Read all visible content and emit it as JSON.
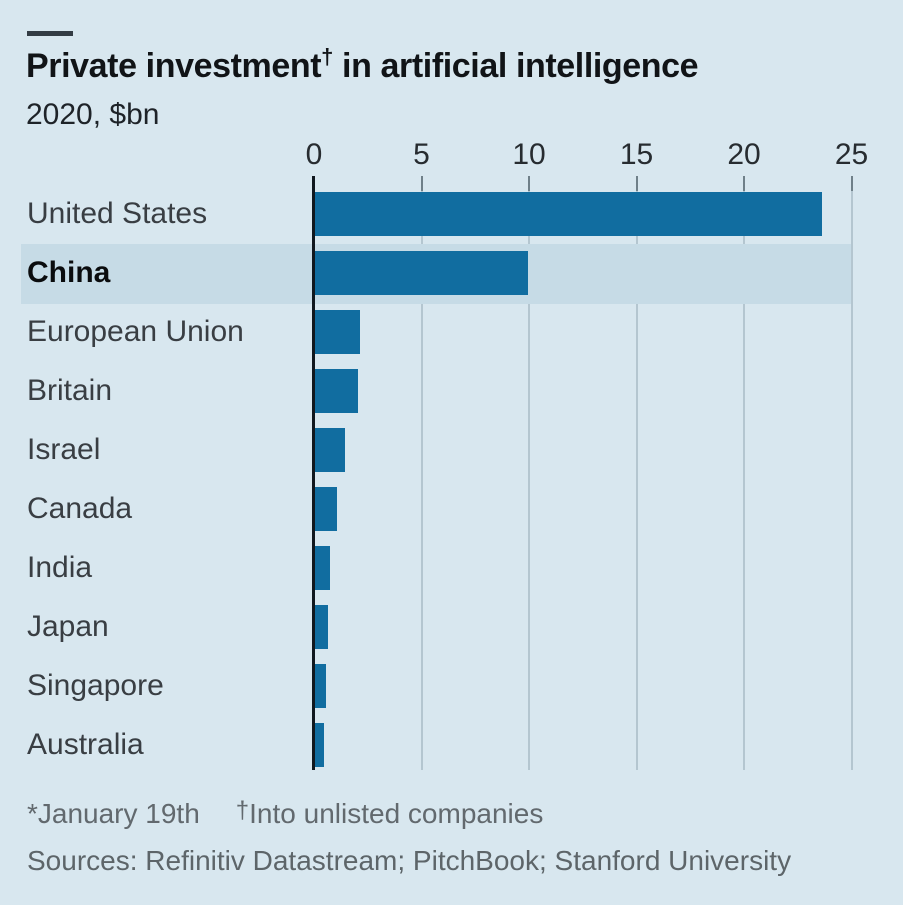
{
  "header": {
    "title_part1": "Private investment",
    "title_dagger": "†",
    "title_part2": " in artificial intelligence",
    "subtitle": "2020, $bn"
  },
  "chart_data": {
    "type": "bar",
    "orientation": "horizontal",
    "title": "Private investment† in artificial intelligence",
    "subtitle": "2020, $bn",
    "categories": [
      "United States",
      "China",
      "European Union",
      "Britain",
      "Israel",
      "Canada",
      "India",
      "Japan",
      "Singapore",
      "Australia"
    ],
    "values": [
      23.6,
      9.9,
      2.1,
      2.0,
      1.4,
      1.0,
      0.7,
      0.6,
      0.5,
      0.4
    ],
    "highlighted_category": "China",
    "xticks": [
      0,
      5,
      10,
      15,
      20,
      25
    ],
    "xlim": [
      0,
      25
    ],
    "grid": "vertical-gridlines-on",
    "legend": "none",
    "unit": "$bn",
    "colors": {
      "bar": "#116da0",
      "background": "#d8e7ef",
      "highlight_band": "#c6dbe6",
      "axis_line": "#10181f",
      "gridline": "#b4c6d0"
    }
  },
  "footnotes": {
    "asterisk_note": "*January 19th",
    "dagger": "†",
    "dagger_note": "Into unlisted companies",
    "sources": "Sources: Refinitiv Datastream; PitchBook; Stanford University"
  }
}
